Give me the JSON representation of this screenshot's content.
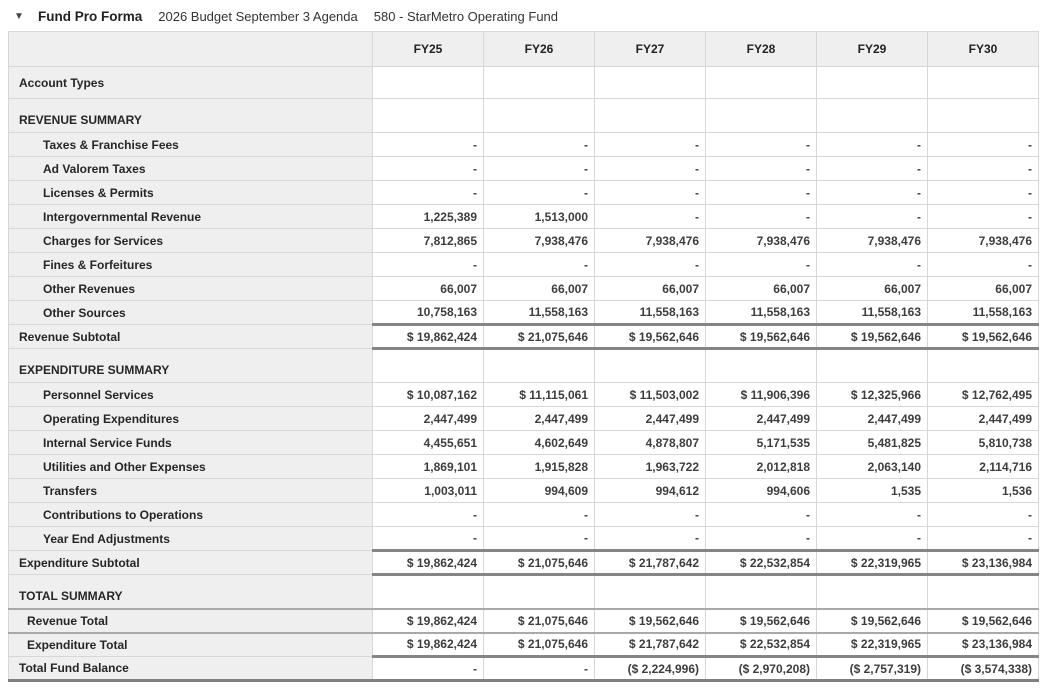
{
  "header": {
    "collapse_icon": "▼",
    "title": "Fund Pro Forma",
    "subtitle_budget": "2026 Budget September 3 Agenda",
    "subtitle_fund": "580 - StarMetro Operating Fund"
  },
  "colors": {
    "label_column_bg": "#efefef",
    "header_row_bg": "#efefef",
    "grid_border": "#d7d7d7",
    "subtotal_rule": "#858585",
    "text": "#3d3d3d"
  },
  "table": {
    "columns": [
      "FY25",
      "FY26",
      "FY27",
      "FY28",
      "FY29",
      "FY30"
    ],
    "rows": [
      {
        "label": "Account Types",
        "type": "account",
        "values": [
          "",
          "",
          "",
          "",
          "",
          ""
        ]
      },
      {
        "label": "REVENUE SUMMARY",
        "type": "section",
        "values": [
          "",
          "",
          "",
          "",
          "",
          ""
        ]
      },
      {
        "label": "Taxes & Franchise Fees",
        "type": "detail",
        "values": [
          "-",
          "-",
          "-",
          "-",
          "-",
          "-"
        ]
      },
      {
        "label": "Ad Valorem Taxes",
        "type": "detail",
        "values": [
          "-",
          "-",
          "-",
          "-",
          "-",
          "-"
        ]
      },
      {
        "label": "Licenses & Permits",
        "type": "detail",
        "values": [
          "-",
          "-",
          "-",
          "-",
          "-",
          "-"
        ]
      },
      {
        "label": "Intergovernmental Revenue",
        "type": "detail",
        "values": [
          "1,225,389",
          "1,513,000",
          "-",
          "-",
          "-",
          "-"
        ]
      },
      {
        "label": "Charges for Services",
        "type": "detail",
        "values": [
          "7,812,865",
          "7,938,476",
          "7,938,476",
          "7,938,476",
          "7,938,476",
          "7,938,476"
        ]
      },
      {
        "label": "Fines & Forfeitures",
        "type": "detail",
        "values": [
          "-",
          "-",
          "-",
          "-",
          "-",
          "-"
        ]
      },
      {
        "label": "Other Revenues",
        "type": "detail",
        "values": [
          "66,007",
          "66,007",
          "66,007",
          "66,007",
          "66,007",
          "66,007"
        ]
      },
      {
        "label": "Other Sources",
        "type": "detail",
        "values": [
          "10,758,163",
          "11,558,163",
          "11,558,163",
          "11,558,163",
          "11,558,163",
          "11,558,163"
        ]
      },
      {
        "label": "Revenue Subtotal",
        "type": "subtotal",
        "values": [
          "$ 19,862,424",
          "$ 21,075,646",
          "$ 19,562,646",
          "$ 19,562,646",
          "$ 19,562,646",
          "$ 19,562,646"
        ]
      },
      {
        "label": "EXPENDITURE SUMMARY",
        "type": "section",
        "values": [
          "",
          "",
          "",
          "",
          "",
          ""
        ]
      },
      {
        "label": "Personnel Services",
        "type": "detail",
        "values": [
          "$ 10,087,162",
          "$ 11,115,061",
          "$ 11,503,002",
          "$ 11,906,396",
          "$ 12,325,966",
          "$ 12,762,495"
        ]
      },
      {
        "label": "Operating Expenditures",
        "type": "detail",
        "values": [
          "2,447,499",
          "2,447,499",
          "2,447,499",
          "2,447,499",
          "2,447,499",
          "2,447,499"
        ]
      },
      {
        "label": "Internal Service Funds",
        "type": "detail",
        "values": [
          "4,455,651",
          "4,602,649",
          "4,878,807",
          "5,171,535",
          "5,481,825",
          "5,810,738"
        ]
      },
      {
        "label": "Utilities and Other Expenses",
        "type": "detail",
        "values": [
          "1,869,101",
          "1,915,828",
          "1,963,722",
          "2,012,818",
          "2,063,140",
          "2,114,716"
        ]
      },
      {
        "label": "Transfers",
        "type": "detail",
        "values": [
          "1,003,011",
          "994,609",
          "994,612",
          "994,606",
          "1,535",
          "1,536"
        ]
      },
      {
        "label": "Contributions to Operations",
        "type": "detail",
        "values": [
          "-",
          "-",
          "-",
          "-",
          "-",
          "-"
        ]
      },
      {
        "label": "Year End Adjustments",
        "type": "detail",
        "values": [
          "-",
          "-",
          "-",
          "-",
          "-",
          "-"
        ]
      },
      {
        "label": "Expenditure Subtotal",
        "type": "subtotal",
        "values": [
          "$ 19,862,424",
          "$ 21,075,646",
          "$ 21,787,642",
          "$ 22,532,854",
          "$ 22,319,965",
          "$ 23,136,984"
        ]
      },
      {
        "label": "TOTAL SUMMARY",
        "type": "section",
        "values": [
          "",
          "",
          "",
          "",
          "",
          ""
        ]
      },
      {
        "label": "Revenue Total",
        "type": "total",
        "values": [
          "$ 19,862,424",
          "$ 21,075,646",
          "$ 19,562,646",
          "$ 19,562,646",
          "$ 19,562,646",
          "$ 19,562,646"
        ]
      },
      {
        "label": "Expenditure Total",
        "type": "total",
        "values": [
          "$ 19,862,424",
          "$ 21,075,646",
          "$ 21,787,642",
          "$ 22,532,854",
          "$ 22,319,965",
          "$ 23,136,984"
        ]
      },
      {
        "label": "Total Fund Balance",
        "type": "grand",
        "values": [
          "-",
          "-",
          "($ 2,224,996)",
          "($ 2,970,208)",
          "($ 2,757,319)",
          "($ 3,574,338)"
        ]
      }
    ]
  }
}
